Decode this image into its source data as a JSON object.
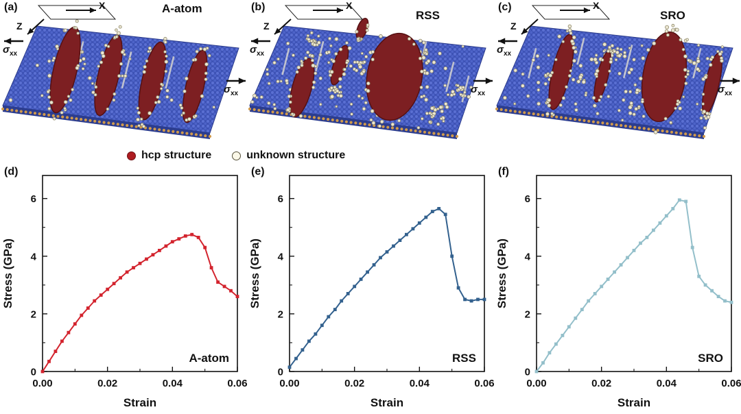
{
  "figure": {
    "top_panels": [
      {
        "label": "(a)",
        "title": "A-atom",
        "axis_labels": {
          "x": "X",
          "z": "Z"
        },
        "stress_label": {
          "base": "σ",
          "sub": "xx"
        }
      },
      {
        "label": "(b)",
        "title": "RSS",
        "axis_labels": {
          "x": "X",
          "z": "Z"
        },
        "stress_label": {
          "base": "σ",
          "sub": "xx"
        }
      },
      {
        "label": "(c)",
        "title": "SRO",
        "axis_labels": {
          "x": "X",
          "z": "Z"
        },
        "stress_label": {
          "base": "σ",
          "sub": "xx"
        }
      }
    ],
    "legend": [
      {
        "label": "hcp structure",
        "marker": "filled-circle",
        "color": "#ae1c21"
      },
      {
        "label": "unknown structure",
        "marker": "open-circle",
        "color": "#fbf8e8"
      }
    ]
  },
  "chart_data": [
    {
      "type": "line",
      "panel_label": "(d)",
      "series_label": "A-atom",
      "color": "#d3242e",
      "xlabel": "Strain",
      "ylabel": "Stress (GPa)",
      "xlim": [
        0,
        0.06
      ],
      "ylim": [
        0,
        6.8
      ],
      "xticks": [
        0,
        0.02,
        0.04,
        0.06
      ],
      "xtick_labels": [
        "0.00",
        "0.02",
        "0.04",
        "0.06"
      ],
      "xminor": [
        0.01,
        0.03,
        0.05
      ],
      "yticks": [
        0,
        2,
        4,
        6
      ],
      "ytick_labels": [
        "0",
        "2",
        "4",
        "6"
      ],
      "yminor": [
        1,
        3,
        5
      ],
      "x": [
        0,
        0.002,
        0.004,
        0.006,
        0.008,
        0.01,
        0.012,
        0.014,
        0.016,
        0.018,
        0.02,
        0.022,
        0.024,
        0.026,
        0.028,
        0.03,
        0.032,
        0.034,
        0.036,
        0.038,
        0.04,
        0.042,
        0.044,
        0.046,
        0.048,
        0.05,
        0.052,
        0.054,
        0.056,
        0.058,
        0.06
      ],
      "y": [
        0.0,
        0.35,
        0.7,
        1.05,
        1.35,
        1.65,
        1.95,
        2.2,
        2.45,
        2.65,
        2.85,
        3.05,
        3.25,
        3.45,
        3.6,
        3.75,
        3.9,
        4.05,
        4.2,
        4.35,
        4.5,
        4.6,
        4.7,
        4.75,
        4.65,
        4.3,
        3.6,
        3.1,
        2.95,
        2.8,
        2.6
      ]
    },
    {
      "type": "line",
      "panel_label": "(e)",
      "series_label": "RSS",
      "color": "#33618e",
      "xlabel": "Strain",
      "ylabel": "Stress (GPa)",
      "xlim": [
        0,
        0.06
      ],
      "ylim": [
        0,
        6.8
      ],
      "xticks": [
        0,
        0.02,
        0.04,
        0.06
      ],
      "xtick_labels": [
        "0.00",
        "0.02",
        "0.04",
        "0.06"
      ],
      "xminor": [
        0.01,
        0.03,
        0.05
      ],
      "yticks": [
        0,
        2,
        4,
        6
      ],
      "ytick_labels": [
        "0",
        "2",
        "4",
        "6"
      ],
      "yminor": [
        1,
        3,
        5
      ],
      "x": [
        0,
        0.002,
        0.004,
        0.006,
        0.008,
        0.01,
        0.012,
        0.014,
        0.016,
        0.018,
        0.02,
        0.022,
        0.024,
        0.026,
        0.028,
        0.03,
        0.032,
        0.034,
        0.036,
        0.038,
        0.04,
        0.042,
        0.044,
        0.046,
        0.048,
        0.05,
        0.052,
        0.054,
        0.056,
        0.058,
        0.06
      ],
      "y": [
        0.15,
        0.45,
        0.75,
        1.05,
        1.3,
        1.6,
        1.9,
        2.15,
        2.45,
        2.7,
        2.95,
        3.2,
        3.45,
        3.7,
        3.95,
        4.15,
        4.35,
        4.55,
        4.75,
        4.95,
        5.15,
        5.35,
        5.55,
        5.65,
        5.45,
        4.0,
        2.9,
        2.5,
        2.45,
        2.5,
        2.5
      ]
    },
    {
      "type": "line",
      "panel_label": "(f)",
      "series_label": "SRO",
      "color": "#93bfca",
      "xlabel": "Strain",
      "ylabel": "Stress (GPa)",
      "xlim": [
        0,
        0.06
      ],
      "ylim": [
        0,
        6.8
      ],
      "xticks": [
        0,
        0.02,
        0.04,
        0.06
      ],
      "xtick_labels": [
        "0.00",
        "0.02",
        "0.04",
        "0.06"
      ],
      "xminor": [
        0.01,
        0.03,
        0.05
      ],
      "yticks": [
        0,
        2,
        4,
        6
      ],
      "ytick_labels": [
        "0",
        "2",
        "4",
        "6"
      ],
      "yminor": [
        1,
        3,
        5
      ],
      "x": [
        0,
        0.002,
        0.004,
        0.006,
        0.008,
        0.01,
        0.012,
        0.014,
        0.016,
        0.018,
        0.02,
        0.022,
        0.024,
        0.026,
        0.028,
        0.03,
        0.032,
        0.034,
        0.036,
        0.038,
        0.04,
        0.042,
        0.044,
        0.046,
        0.048,
        0.05,
        0.052,
        0.054,
        0.056,
        0.058,
        0.06
      ],
      "y": [
        0.0,
        0.3,
        0.65,
        0.95,
        1.25,
        1.55,
        1.85,
        2.15,
        2.45,
        2.7,
        2.95,
        3.2,
        3.45,
        3.7,
        3.95,
        4.2,
        4.45,
        4.65,
        4.9,
        5.15,
        5.4,
        5.65,
        5.95,
        5.9,
        4.3,
        3.3,
        3.0,
        2.8,
        2.6,
        2.45,
        2.4
      ]
    }
  ]
}
